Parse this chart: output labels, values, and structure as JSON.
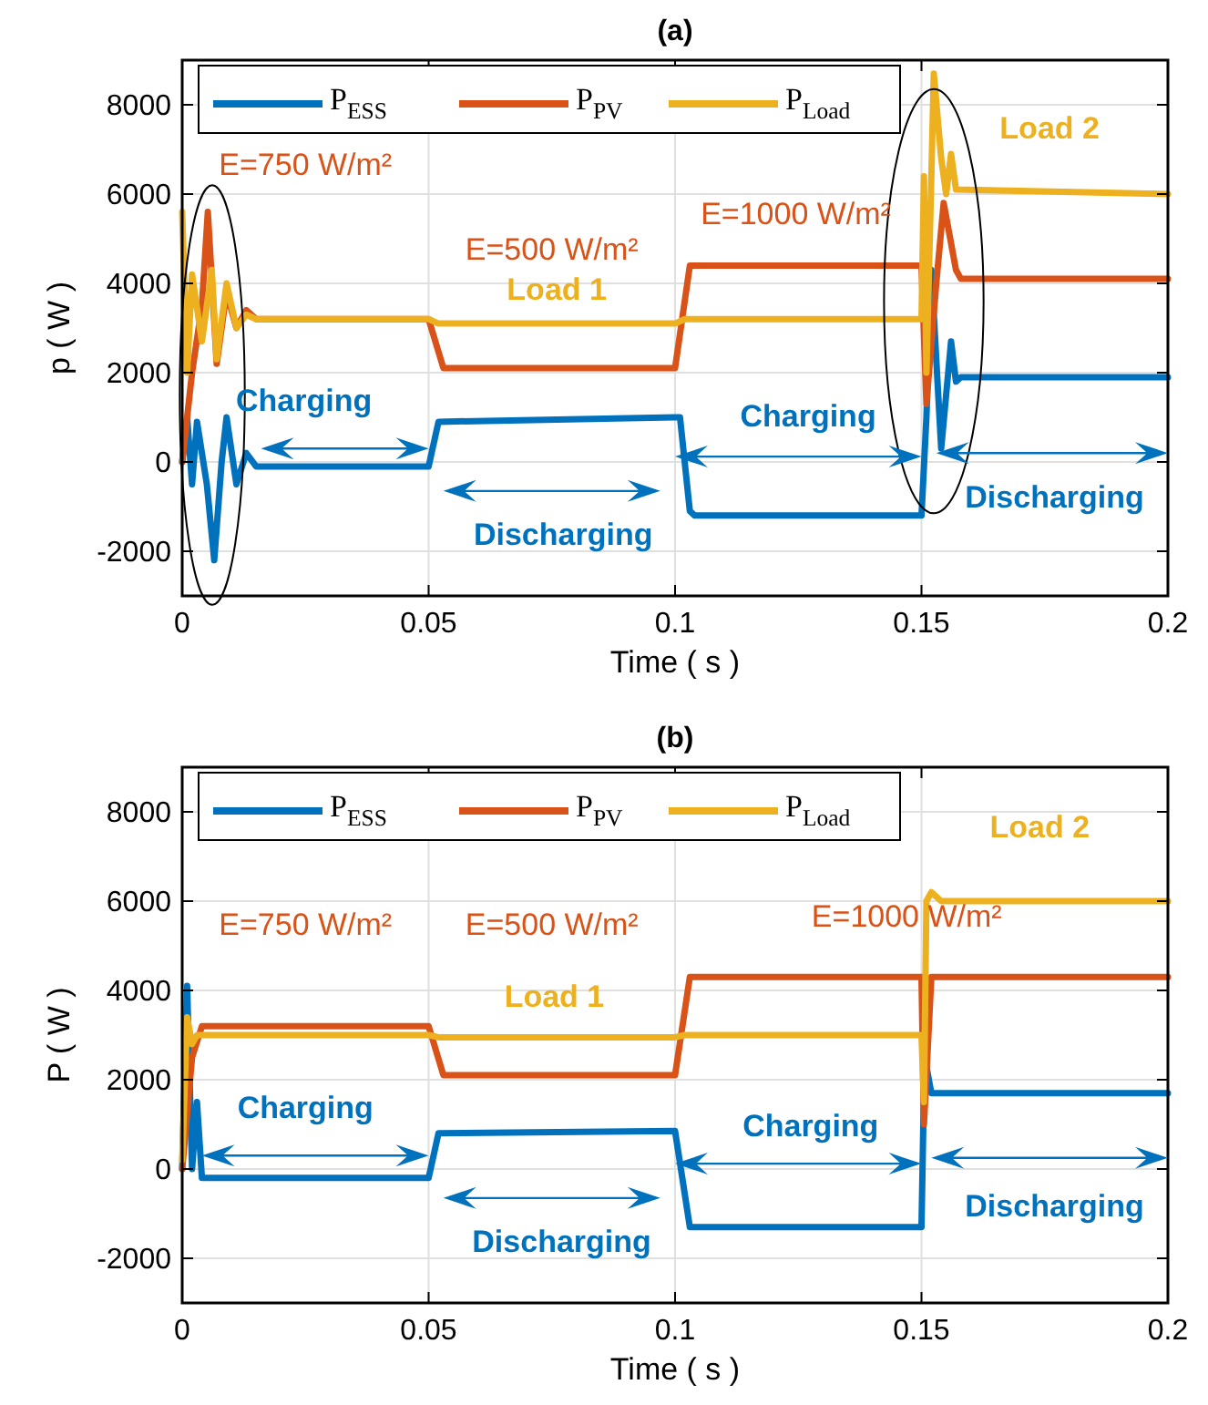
{
  "chart_data": [
    {
      "type": "line",
      "title": "(a)",
      "xlabel": "Time ( s )",
      "ylabel": "p ( W )",
      "xlim": [
        0,
        0.2
      ],
      "xticks": [
        0,
        0.05,
        0.1,
        0.15,
        0.2
      ],
      "ylim": [
        -3000,
        9000
      ],
      "yticks": [
        -2000,
        0,
        2000,
        4000,
        6000,
        8000
      ],
      "grid": true,
      "legend": "top left",
      "line_style": "solid",
      "marker": "none",
      "series": [
        {
          "name": "P$_{ESS}$",
          "color": "#0072bd",
          "x": [
            0,
            0.001,
            0.002,
            0.003,
            0.005,
            0.0065,
            0.008,
            0.009,
            0.011,
            0.013,
            0.015,
            0.05,
            0.052,
            0.1,
            0.101,
            0.103,
            0.104,
            0.15,
            0.151,
            0.152,
            0.154,
            0.156,
            0.157,
            0.158,
            0.2
          ],
          "values": [
            0,
            1000,
            -500,
            900,
            -500,
            -2200,
            0,
            1000,
            -500,
            200,
            -100,
            -100,
            900,
            1000,
            1000,
            -1100,
            -1200,
            -1200,
            1000,
            4300,
            300,
            2700,
            1800,
            1900,
            1900
          ]
        },
        {
          "name": "P$_{PV}$",
          "color": "#d95319",
          "x": [
            0,
            0.002,
            0.004,
            0.0052,
            0.007,
            0.009,
            0.011,
            0.013,
            0.015,
            0.05,
            0.053,
            0.1,
            0.103,
            0.15,
            0.151,
            0.153,
            0.1545,
            0.157,
            0.158,
            0.2
          ],
          "values": [
            0,
            2000,
            3500,
            5600,
            2200,
            3800,
            3000,
            3400,
            3200,
            3200,
            2100,
            2100,
            4400,
            4400,
            1300,
            4000,
            5800,
            4300,
            4100,
            4100
          ]
        },
        {
          "name": "P$_{Load}$",
          "color": "#edb120",
          "x": [
            0,
            0.001,
            0.002,
            0.004,
            0.006,
            0.007,
            0.009,
            0.011,
            0.013,
            0.015,
            0.05,
            0.052,
            0.1,
            0.102,
            0.15,
            0.1505,
            0.151,
            0.152,
            0.1525,
            0.154,
            0.155,
            0.156,
            0.157,
            0.2
          ],
          "values": [
            5600,
            2000,
            4200,
            2700,
            4300,
            2300,
            4000,
            3000,
            3300,
            3200,
            3200,
            3100,
            3100,
            3200,
            3200,
            6400,
            2000,
            6400,
            8700,
            6800,
            6000,
            6900,
            6100,
            6000
          ]
        }
      ],
      "annotations": [
        "E=750 W/m²",
        "E=500 W/m²",
        "Load 1",
        "E=1000 W/m²",
        "Load 2",
        "Charging",
        "Discharging",
        "Charging",
        "Discharging"
      ]
    },
    {
      "type": "line",
      "title": "(b)",
      "xlabel": "Time ( s )",
      "ylabel": "P ( W )",
      "xlim": [
        0,
        0.2
      ],
      "xticks": [
        0,
        0.05,
        0.1,
        0.15,
        0.2
      ],
      "ylim": [
        -3000,
        9000
      ],
      "yticks": [
        -2000,
        0,
        2000,
        4000,
        6000,
        8000
      ],
      "grid": true,
      "legend": "top left",
      "line_style": "solid",
      "marker": "none",
      "series": [
        {
          "name": "P$_{ESS}$",
          "color": "#0072bd",
          "x": [
            0,
            0.001,
            0.002,
            0.003,
            0.004,
            0.05,
            0.052,
            0.1,
            0.103,
            0.15,
            0.1505,
            0.151,
            0.152,
            0.2
          ],
          "values": [
            0,
            4100,
            0,
            1500,
            -200,
            -200,
            800,
            850,
            -1300,
            -1300,
            1800,
            2300,
            1700,
            1700
          ]
        },
        {
          "name": "P$_{PV}$",
          "color": "#d95319",
          "x": [
            0,
            0.002,
            0.004,
            0.05,
            0.053,
            0.1,
            0.103,
            0.15,
            0.1505,
            0.152,
            0.2
          ],
          "values": [
            0,
            2500,
            3200,
            3200,
            2100,
            2100,
            4300,
            4300,
            1000,
            4300,
            4300
          ]
        },
        {
          "name": "P$_{Load}$",
          "color": "#edb120",
          "x": [
            0,
            0.001,
            0.002,
            0.003,
            0.05,
            0.052,
            0.1,
            0.102,
            0.15,
            0.1505,
            0.151,
            0.152,
            0.154,
            0.2
          ],
          "values": [
            200,
            3400,
            2800,
            3000,
            3000,
            2950,
            2950,
            3000,
            3000,
            1500,
            6000,
            6200,
            6000,
            6000
          ]
        }
      ],
      "annotations": [
        "E=750 W/m²",
        "E=500 W/m²",
        "Load 1",
        "E=1000 W/m²",
        "Load 2",
        "Charging",
        "Discharging",
        "Charging",
        "Discharging"
      ]
    }
  ]
}
